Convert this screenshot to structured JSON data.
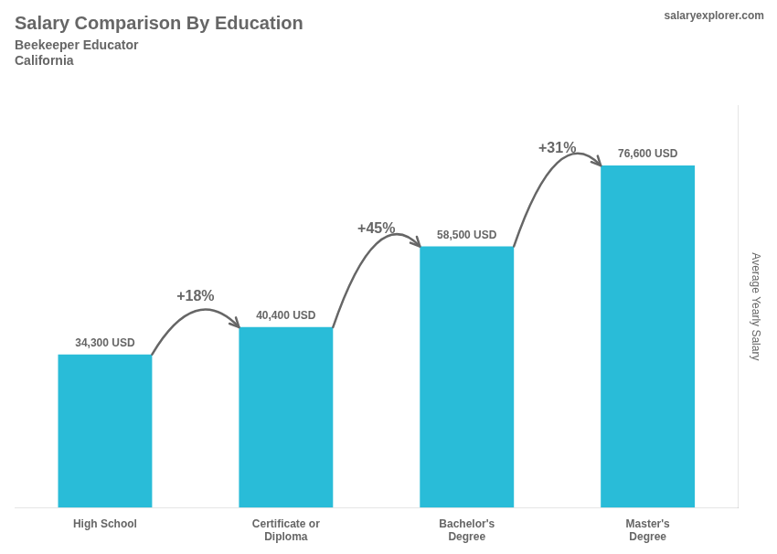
{
  "chart_data": {
    "type": "bar",
    "title": "Salary Comparison By Education",
    "subtitle": [
      "Beekeeper Educator",
      "California"
    ],
    "brand": "salaryexplorer.com",
    "ylabel": "Average Yearly Salary",
    "categories": [
      "High School",
      "Certificate or\nDiploma",
      "Bachelor's\nDegree",
      "Master's\nDegree"
    ],
    "values": [
      34300,
      40400,
      58500,
      76600
    ],
    "value_labels": [
      "34,300 USD",
      "40,400 USD",
      "58,500 USD",
      "76,600 USD"
    ],
    "data_labels": true,
    "annotations": [
      "+18%",
      "+45%",
      "+31%"
    ],
    "color": "#29bcd8",
    "ylim": [
      0,
      90000
    ],
    "tick_labels": "x",
    "grid": false
  }
}
